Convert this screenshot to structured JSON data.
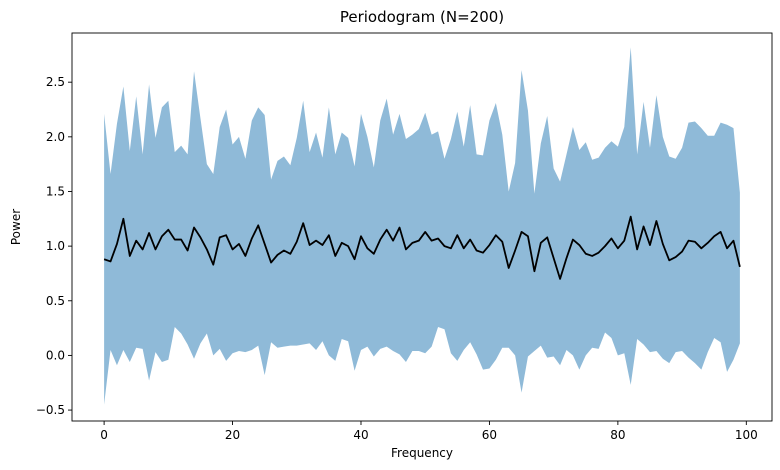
{
  "chart_data": {
    "type": "area",
    "title": "Periodogram (N=200)",
    "xlabel": "Frequency",
    "ylabel": "Power",
    "xlim": [
      -5,
      104
    ],
    "ylim": [
      -0.6,
      2.95
    ],
    "xticks": [
      0,
      20,
      40,
      60,
      80,
      100
    ],
    "yticks": [
      -0.5,
      0.0,
      0.5,
      1.0,
      1.5,
      2.0,
      2.5
    ],
    "xtick_labels": [
      "0",
      "20",
      "40",
      "60",
      "80",
      "100"
    ],
    "ytick_labels": [
      "−0.5",
      "0.0",
      "0.5",
      "1.0",
      "1.5",
      "2.0",
      "2.5"
    ],
    "grid": false,
    "legend": "none",
    "colors": {
      "band": "#8fbad8",
      "line": "#000000"
    },
    "x": [
      0,
      1,
      2,
      3,
      4,
      5,
      6,
      7,
      8,
      9,
      10,
      11,
      12,
      13,
      14,
      15,
      16,
      17,
      18,
      19,
      20,
      21,
      22,
      23,
      24,
      25,
      26,
      27,
      28,
      29,
      30,
      31,
      32,
      33,
      34,
      35,
      36,
      37,
      38,
      39,
      40,
      41,
      42,
      43,
      44,
      45,
      46,
      47,
      48,
      49,
      50,
      51,
      52,
      53,
      54,
      55,
      56,
      57,
      58,
      59,
      60,
      61,
      62,
      63,
      64,
      65,
      66,
      67,
      68,
      69,
      70,
      71,
      72,
      73,
      74,
      75,
      76,
      77,
      78,
      79,
      80,
      81,
      82,
      83,
      84,
      85,
      86,
      87,
      88,
      89,
      90,
      91,
      92,
      93,
      94,
      95,
      96,
      97,
      98,
      99
    ],
    "series": [
      {
        "role": "mean",
        "values": [
          0.88,
          0.86,
          1.02,
          1.25,
          0.91,
          1.05,
          0.97,
          1.12,
          0.97,
          1.09,
          1.15,
          1.06,
          1.06,
          0.96,
          1.17,
          1.08,
          0.97,
          0.83,
          1.08,
          1.1,
          0.97,
          1.02,
          0.91,
          1.07,
          1.19,
          1.02,
          0.85,
          0.92,
          0.96,
          0.93,
          1.04,
          1.21,
          1.01,
          1.05,
          1.01,
          1.1,
          0.91,
          1.03,
          1.0,
          0.88,
          1.09,
          0.98,
          0.93,
          1.06,
          1.15,
          1.05,
          1.17,
          0.97,
          1.03,
          1.05,
          1.13,
          1.05,
          1.07,
          1.0,
          0.98,
          1.1,
          0.98,
          1.06,
          0.96,
          0.94,
          1.01,
          1.1,
          1.04,
          0.8,
          0.96,
          1.13,
          1.09,
          0.77,
          1.03,
          1.08,
          0.89,
          0.7,
          0.89,
          1.06,
          1.01,
          0.93,
          0.91,
          0.94,
          1.0,
          1.07,
          0.98,
          1.05,
          1.27,
          0.97,
          1.18,
          1.01,
          1.23,
          1.02,
          0.87,
          0.9,
          0.95,
          1.05,
          1.04,
          0.98,
          1.03,
          1.09,
          1.13,
          0.98,
          1.05,
          0.81
        ]
      },
      {
        "role": "upper",
        "values": [
          2.21,
          1.66,
          2.12,
          2.46,
          1.87,
          2.37,
          1.84,
          2.48,
          1.99,
          2.27,
          2.33,
          1.86,
          1.92,
          1.84,
          2.6,
          2.17,
          1.75,
          1.66,
          2.09,
          2.25,
          1.93,
          2.0,
          1.8,
          2.15,
          2.27,
          2.2,
          1.61,
          1.78,
          1.82,
          1.74,
          1.99,
          2.33,
          1.86,
          2.04,
          1.81,
          2.27,
          1.84,
          2.04,
          1.99,
          1.73,
          2.21,
          2.0,
          1.72,
          2.15,
          2.35,
          2.02,
          2.21,
          1.98,
          2.02,
          2.07,
          2.22,
          2.02,
          2.05,
          1.8,
          1.98,
          2.23,
          1.91,
          2.29,
          1.84,
          1.83,
          2.15,
          2.31,
          2.02,
          1.5,
          1.76,
          2.61,
          2.24,
          1.48,
          1.94,
          2.19,
          1.71,
          1.59,
          1.84,
          2.09,
          1.88,
          1.95,
          1.79,
          1.81,
          1.9,
          1.96,
          1.91,
          2.09,
          2.82,
          1.84,
          2.32,
          1.9,
          2.38,
          2.0,
          1.82,
          1.8,
          1.9,
          2.13,
          2.14,
          2.08,
          2.01,
          2.01,
          2.13,
          2.11,
          2.08,
          1.49
        ]
      },
      {
        "role": "lower",
        "values": [
          -0.45,
          0.05,
          -0.09,
          0.05,
          -0.06,
          0.07,
          0.06,
          -0.23,
          0.03,
          -0.06,
          -0.04,
          0.26,
          0.2,
          0.1,
          -0.03,
          0.11,
          0.2,
          0.0,
          0.06,
          -0.05,
          0.02,
          0.04,
          0.03,
          0.05,
          0.09,
          -0.18,
          0.12,
          0.07,
          0.08,
          0.09,
          0.09,
          0.1,
          0.11,
          0.05,
          0.13,
          0.0,
          -0.05,
          0.15,
          0.13,
          -0.14,
          0.05,
          0.08,
          -0.01,
          0.06,
          0.08,
          0.04,
          0.01,
          -0.06,
          0.04,
          0.04,
          0.02,
          0.08,
          0.26,
          0.24,
          0.02,
          -0.05,
          0.05,
          0.12,
          0.01,
          -0.13,
          -0.12,
          -0.04,
          0.07,
          0.07,
          0.0,
          -0.34,
          -0.01,
          0.04,
          0.09,
          -0.02,
          -0.01,
          -0.09,
          0.05,
          0.0,
          -0.13,
          0.0,
          0.07,
          0.06,
          0.21,
          0.16,
          0.0,
          0.02,
          -0.27,
          0.15,
          0.1,
          0.03,
          0.04,
          -0.03,
          -0.07,
          0.03,
          0.04,
          -0.02,
          -0.07,
          -0.13,
          0.03,
          0.16,
          0.12,
          -0.15,
          -0.04,
          0.11
        ]
      }
    ]
  }
}
